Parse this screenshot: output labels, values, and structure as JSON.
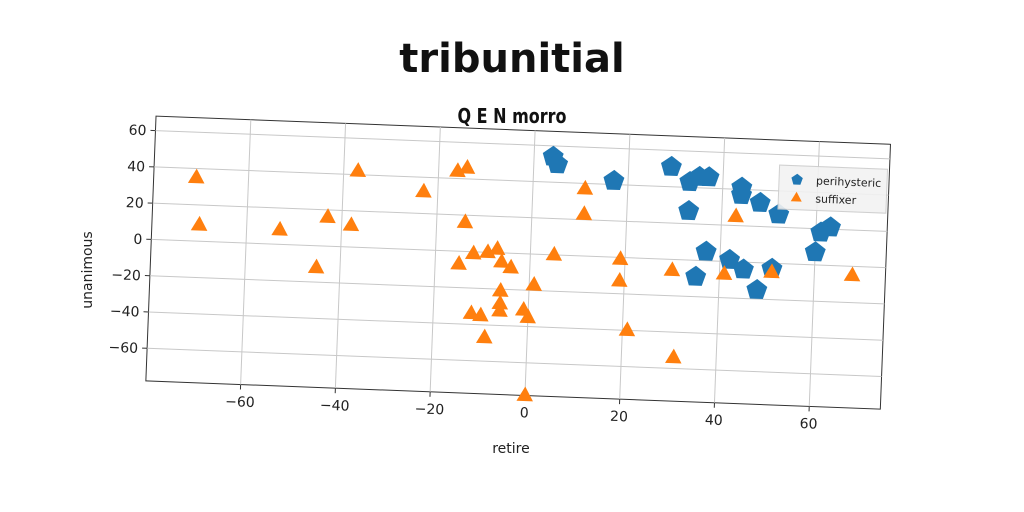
{
  "chart_data": {
    "type": "scatter",
    "title": "tribunitial",
    "subtitle": "Q E N morro",
    "xlabel": "retire",
    "ylabel": "unanimous",
    "xlim": [
      -80,
      75
    ],
    "ylim": [
      -78,
      68
    ],
    "xticks": [
      -60,
      -40,
      -20,
      0,
      20,
      40,
      60
    ],
    "yticks": [
      -60,
      -40,
      -20,
      0,
      20,
      40,
      60
    ],
    "grid": true,
    "legend_position": "upper right",
    "series": [
      {
        "name": "perihysteric",
        "marker": "pentagon",
        "color": "#1f77b4",
        "points": [
          [
            4,
            54
          ],
          [
            5,
            50
          ],
          [
            17,
            42
          ],
          [
            29,
            51
          ],
          [
            33,
            43
          ],
          [
            35,
            46
          ],
          [
            37,
            46
          ],
          [
            44,
            41
          ],
          [
            44,
            37
          ],
          [
            48,
            33
          ],
          [
            52,
            27
          ],
          [
            33,
            27
          ],
          [
            63,
            21
          ],
          [
            61,
            18
          ],
          [
            60,
            7
          ],
          [
            37,
            5
          ],
          [
            35,
            -9
          ],
          [
            42,
            1
          ],
          [
            45,
            -4
          ],
          [
            48,
            -15
          ],
          [
            51,
            -3
          ]
        ]
      },
      {
        "name": "suffixer",
        "marker": "triangle",
        "color": "#ff7f0e",
        "points": [
          [
            -71,
            35
          ],
          [
            -70,
            9
          ],
          [
            -53,
            8
          ],
          [
            -45,
            -12
          ],
          [
            -43,
            16
          ],
          [
            -38,
            12
          ],
          [
            -37,
            42
          ],
          [
            -23,
            32
          ],
          [
            -16,
            44
          ],
          [
            -14,
            46
          ],
          [
            -14,
            16
          ],
          [
            -15,
            -7
          ],
          [
            -12,
            -1
          ],
          [
            -9,
            0
          ],
          [
            -7,
            2
          ],
          [
            -6,
            -5
          ],
          [
            -4,
            -8
          ],
          [
            -6,
            -21
          ],
          [
            -6,
            -28
          ],
          [
            -6,
            -32
          ],
          [
            -12,
            -34
          ],
          [
            -10,
            -35
          ],
          [
            -9,
            -47
          ],
          [
            -1,
            -31
          ],
          [
            0,
            -35
          ],
          [
            1,
            -17
          ],
          [
            5,
            0
          ],
          [
            11,
            37
          ],
          [
            11,
            23
          ],
          [
            19,
            -1
          ],
          [
            19,
            -13
          ],
          [
            21,
            -40
          ],
          [
            30,
            -6
          ],
          [
            31,
            -54
          ],
          [
            41,
            -7
          ],
          [
            43,
            25
          ],
          [
            51,
            -5
          ],
          [
            68,
            -5
          ],
          [
            0,
            -78
          ]
        ]
      }
    ]
  }
}
